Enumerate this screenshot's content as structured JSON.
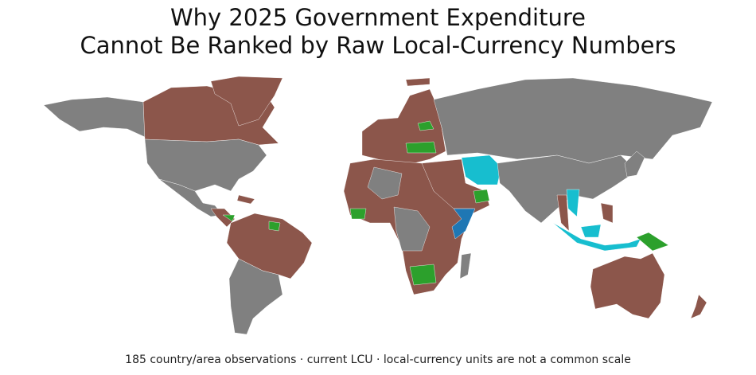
{
  "title_lines": [
    "Why 2025 Government Expenditure",
    "Cannot Be Ranked by Raw Local-Currency Numbers"
  ],
  "footnote": "185 country/area observations · current LCU · local-currency units are not a common scale"
}
